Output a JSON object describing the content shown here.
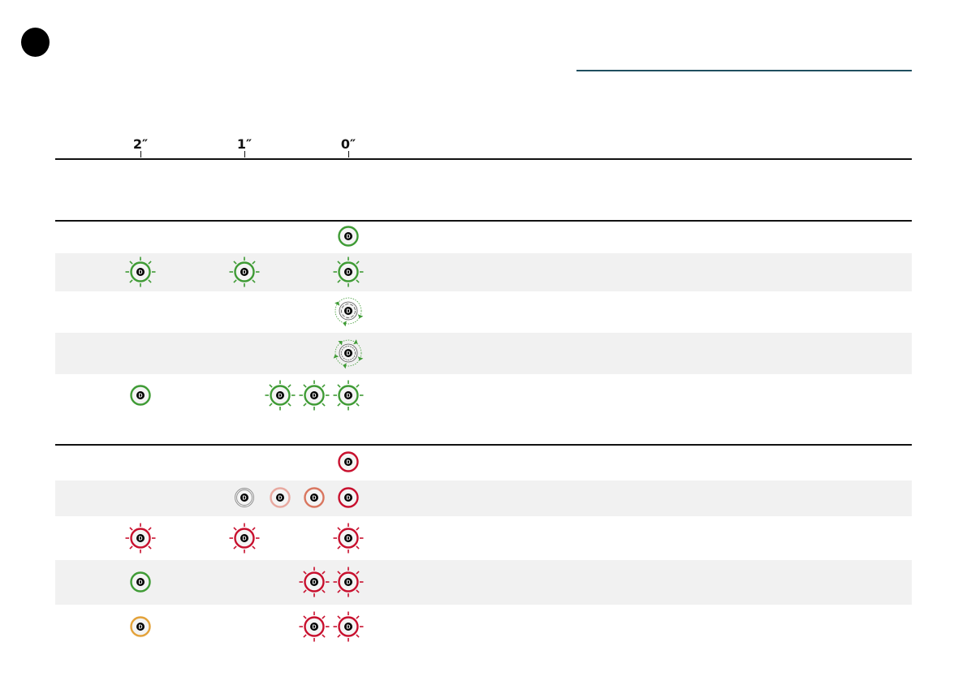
{
  "timeline": {
    "ticks": [
      {
        "label": "2″",
        "seconds": 2
      },
      {
        "label": "1″",
        "seconds": 1
      },
      {
        "label": "0″",
        "seconds": 0
      }
    ]
  },
  "colors": {
    "green": "#3f9b35",
    "red": "#c8102e",
    "orange": "#e3a23a",
    "gray": "#888888",
    "pink": "#e8a9a0",
    "salmon": "#d9765f"
  },
  "groups": [
    {
      "rows": [
        {
          "shade": false,
          "icons": [
            {
              "s": 0,
              "type": "solid",
              "color": "green"
            }
          ]
        },
        {
          "shade": true,
          "icons": [
            {
              "s": 2,
              "type": "flash",
              "color": "green"
            },
            {
              "s": 1,
              "type": "flash",
              "color": "green"
            },
            {
              "s": 0,
              "type": "flash",
              "color": "green"
            }
          ]
        },
        {
          "shade": false,
          "icons": [
            {
              "s": 0,
              "type": "rotate-slow",
              "color": "green"
            }
          ]
        },
        {
          "shade": true,
          "icons": [
            {
              "s": 0,
              "type": "rotate-fast",
              "color": "green"
            }
          ]
        },
        {
          "shade": false,
          "tall": true,
          "icons": [
            {
              "s": 2,
              "type": "solid",
              "color": "green"
            },
            {
              "s": 0.66,
              "type": "flash",
              "color": "green"
            },
            {
              "s": 0.33,
              "type": "flash",
              "color": "green"
            },
            {
              "s": 0,
              "type": "flash",
              "color": "green"
            }
          ]
        }
      ]
    },
    {
      "rows": [
        {
          "shade": false,
          "icons": [
            {
              "s": 0,
              "type": "solid",
              "color": "red"
            }
          ]
        },
        {
          "shade": true,
          "icons": [
            {
              "s": 1,
              "type": "double",
              "color": "gray"
            },
            {
              "s": 0.66,
              "type": "solid",
              "color": "pink"
            },
            {
              "s": 0.33,
              "type": "solid",
              "color": "salmon"
            },
            {
              "s": 0,
              "type": "solid",
              "color": "red"
            }
          ]
        },
        {
          "shade": false,
          "icons": [
            {
              "s": 2,
              "type": "flash",
              "color": "red"
            },
            {
              "s": 1,
              "type": "flash",
              "color": "red"
            },
            {
              "s": 0,
              "type": "flash",
              "color": "red"
            }
          ]
        },
        {
          "shade": true,
          "icons": [
            {
              "s": 2,
              "type": "solid",
              "color": "green"
            },
            {
              "s": 0.33,
              "type": "flash",
              "color": "red"
            },
            {
              "s": 0,
              "type": "flash",
              "color": "red"
            }
          ]
        },
        {
          "shade": false,
          "icons": [
            {
              "s": 2,
              "type": "solid",
              "color": "orange"
            },
            {
              "s": 0.33,
              "type": "flash",
              "color": "red"
            },
            {
              "s": 0,
              "type": "flash",
              "color": "red"
            }
          ]
        }
      ]
    }
  ]
}
